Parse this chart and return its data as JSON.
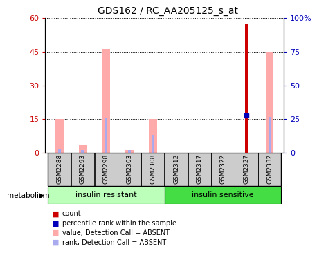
{
  "title": "GDS162 / RC_AA205125_s_at",
  "samples": [
    "GSM2288",
    "GSM2293",
    "GSM2298",
    "GSM2303",
    "GSM2308",
    "GSM2312",
    "GSM2317",
    "GSM2322",
    "GSM2327",
    "GSM2332"
  ],
  "count_values": [
    0,
    0,
    0,
    0,
    0,
    0,
    0,
    0,
    57,
    0
  ],
  "percentile_values": [
    0,
    0,
    0,
    0,
    0,
    0,
    0,
    0,
    28,
    0
  ],
  "absent_value_bars": [
    15,
    3.5,
    46,
    1.5,
    15,
    0,
    0,
    0,
    0,
    45
  ],
  "absent_rank_bars": [
    2.0,
    1.5,
    15.5,
    1.5,
    8.0,
    0,
    0,
    0,
    0,
    16.0
  ],
  "ylim_left": [
    0,
    60
  ],
  "ylim_right": [
    0,
    100
  ],
  "yticks_left": [
    0,
    15,
    30,
    45,
    60
  ],
  "yticks_right": [
    0,
    25,
    50,
    75,
    100
  ],
  "ytick_labels_right": [
    "0",
    "25",
    "50",
    "75",
    "100%"
  ],
  "count_color": "#cc0000",
  "percentile_color": "#0000bb",
  "absent_value_color": "#ffaaaa",
  "absent_rank_color": "#aaaaee",
  "group_ir_color": "#bbffbb",
  "group_is_color": "#44dd44",
  "bar_bg_color": "#cccccc",
  "absent_bar_width": 0.35,
  "count_bar_width": 0.12,
  "rank_bar_width": 0.12
}
